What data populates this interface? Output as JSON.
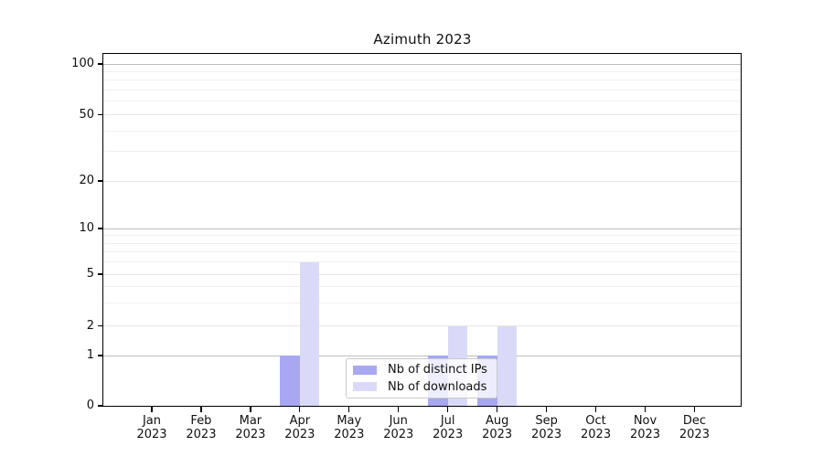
{
  "chart_data": {
    "type": "bar",
    "title": "Azimuth 2023",
    "categories": [
      "Jan 2023",
      "Feb 2023",
      "Mar 2023",
      "Apr 2023",
      "May 2023",
      "Jun 2023",
      "Jul 2023",
      "Aug 2023",
      "Sep 2023",
      "Oct 2023",
      "Nov 2023",
      "Dec 2023"
    ],
    "series": [
      {
        "name": "Nb of distinct IPs",
        "color": "#a7a7f2",
        "values": [
          0,
          0,
          0,
          1,
          0,
          0,
          1,
          1,
          0,
          0,
          0,
          0
        ]
      },
      {
        "name": "Nb of downloads",
        "color": "#dadaf8",
        "values": [
          0,
          0,
          0,
          6,
          0,
          0,
          2,
          2,
          0,
          0,
          0,
          0
        ]
      }
    ],
    "xlabel": "",
    "ylabel": "",
    "yaxis": {
      "scale": "symlog-like",
      "range": [
        0,
        100
      ],
      "ticks": [
        0,
        1,
        2,
        5,
        10,
        20,
        50,
        100
      ]
    },
    "grid": {
      "enabled": true,
      "major_ticks": [
        1,
        10,
        100
      ],
      "labeled_minor_ticks": [
        2,
        5,
        20,
        50
      ],
      "minor_ticks": [
        3,
        4,
        6,
        7,
        8,
        9,
        30,
        40,
        60,
        70,
        80,
        90
      ]
    },
    "legend": {
      "position": "lower center"
    }
  },
  "colors": {
    "background": "#ffffff",
    "axis_spine": "#000000",
    "grid_major": "#bdbdbd",
    "grid_labeled": "#e7e7e7",
    "grid_minor": "#efefef",
    "text": "#111111",
    "legend_border": "#c9c9c9"
  }
}
